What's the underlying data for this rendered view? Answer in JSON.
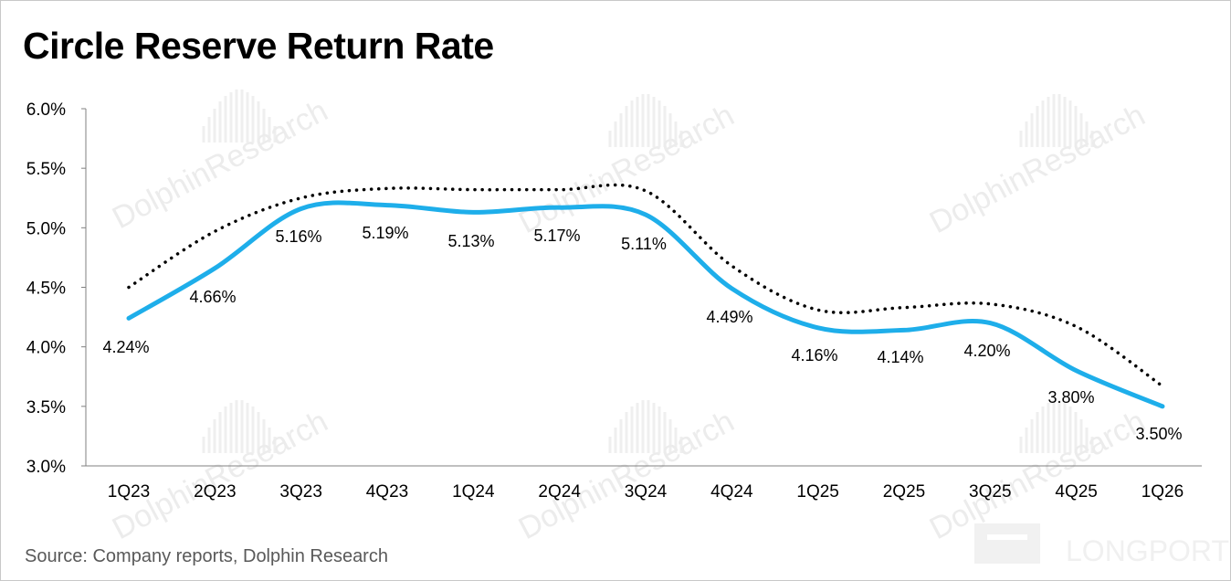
{
  "title": "Circle Reserve Return Rate",
  "source": "Source: Company reports, Dolphin Research",
  "watermark": {
    "text": "DolphinResearch",
    "brand": "LONGPORT"
  },
  "colors": {
    "main_line": "#1EAEEA",
    "dotted_line": "#000000",
    "axis": "#808080",
    "watermark": "#ececec"
  },
  "chart_data": {
    "type": "line",
    "title": "Circle Reserve Return Rate",
    "categories": [
      "1Q23",
      "2Q23",
      "3Q23",
      "4Q23",
      "1Q24",
      "2Q24",
      "3Q24",
      "4Q24",
      "1Q25",
      "2Q25",
      "3Q25",
      "4Q25",
      "1Q26"
    ],
    "series": [
      {
        "style": "solid",
        "color": "#1EAEEA",
        "values": [
          4.24,
          4.66,
          5.16,
          5.19,
          5.13,
          5.17,
          5.11,
          4.49,
          4.16,
          4.14,
          4.2,
          3.8,
          3.5
        ],
        "labels": [
          "4.24%",
          "4.66%",
          "5.16%",
          "5.19%",
          "5.13%",
          "5.17%",
          "5.11%",
          "4.49%",
          "4.16%",
          "4.14%",
          "4.20%",
          "3.80%",
          "3.50%"
        ]
      },
      {
        "style": "dotted",
        "color": "#000000",
        "values": [
          4.5,
          4.97,
          5.25,
          5.33,
          5.32,
          5.32,
          5.31,
          4.68,
          4.31,
          4.33,
          4.36,
          4.17,
          3.67
        ]
      }
    ],
    "y_ticks": [
      "6.0%",
      "5.5%",
      "5.0%",
      "4.5%",
      "4.0%",
      "3.5%",
      "3.0%"
    ],
    "y_tick_values": [
      6.0,
      5.5,
      5.0,
      4.5,
      4.0,
      3.5,
      3.0
    ],
    "ylim": [
      3.0,
      6.0
    ],
    "grid": false,
    "legend": "none"
  }
}
